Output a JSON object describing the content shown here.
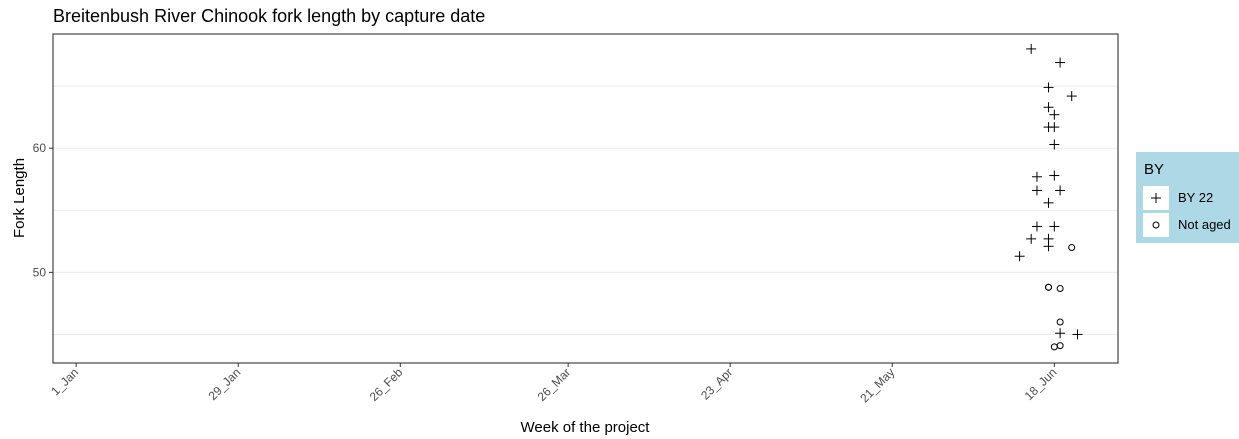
{
  "chart_data": {
    "type": "scatter",
    "title": "Breitenbush River Chinook fork length by capture date",
    "xlabel": "Week of the project",
    "ylabel": "Fork Length",
    "x_ticks": [
      "2024-01-01",
      "2024-01-29",
      "2024-02-26",
      "2024-03-26",
      "2024-04-23",
      "2024-05-21",
      "2024-06-18"
    ],
    "x_tick_labels": [
      "1_Jan",
      "29_Jan",
      "26_Feb",
      "26_Mar",
      "23_Apr",
      "21_May",
      "18_Jun"
    ],
    "y_ticks": [
      50,
      60
    ],
    "xlim": [
      "2023-12-28",
      "2024-06-29"
    ],
    "ylim": [
      42.7,
      69.2
    ],
    "grid": true,
    "legend": {
      "title": "BY",
      "position": "right",
      "background": "#add8e6",
      "entries": [
        {
          "label": "BY 22",
          "shape": "plus"
        },
        {
          "label": "Not aged",
          "shape": "circle"
        }
      ]
    },
    "series": [
      {
        "name": "BY 22",
        "shape": "plus",
        "points": [
          {
            "x": "2024-06-14",
            "y": 68.0
          },
          {
            "x": "2024-06-19",
            "y": 66.9
          },
          {
            "x": "2024-06-17",
            "y": 64.9
          },
          {
            "x": "2024-06-21",
            "y": 64.2
          },
          {
            "x": "2024-06-17",
            "y": 63.3
          },
          {
            "x": "2024-06-18",
            "y": 62.7
          },
          {
            "x": "2024-06-17",
            "y": 61.7
          },
          {
            "x": "2024-06-18",
            "y": 61.7
          },
          {
            "x": "2024-06-18",
            "y": 60.3
          },
          {
            "x": "2024-06-18",
            "y": 57.8
          },
          {
            "x": "2024-06-15",
            "y": 57.7
          },
          {
            "x": "2024-06-15",
            "y": 56.6
          },
          {
            "x": "2024-06-19",
            "y": 56.6
          },
          {
            "x": "2024-06-17",
            "y": 55.6
          },
          {
            "x": "2024-06-15",
            "y": 53.7
          },
          {
            "x": "2024-06-18",
            "y": 53.7
          },
          {
            "x": "2024-06-14",
            "y": 52.7
          },
          {
            "x": "2024-06-17",
            "y": 52.7
          },
          {
            "x": "2024-06-17",
            "y": 52.1
          },
          {
            "x": "2024-06-12",
            "y": 51.3
          },
          {
            "x": "2024-06-19",
            "y": 45.1
          },
          {
            "x": "2024-06-22",
            "y": 45.0
          }
        ]
      },
      {
        "name": "Not aged",
        "shape": "circle",
        "points": [
          {
            "x": "2024-06-21",
            "y": 52.0
          },
          {
            "x": "2024-06-17",
            "y": 48.8
          },
          {
            "x": "2024-06-17",
            "y": 48.8
          },
          {
            "x": "2024-06-19",
            "y": 48.7
          },
          {
            "x": "2024-06-19",
            "y": 46.0
          },
          {
            "x": "2024-06-19",
            "y": 44.1
          },
          {
            "x": "2024-06-18",
            "y": 44.0
          }
        ]
      }
    ]
  }
}
